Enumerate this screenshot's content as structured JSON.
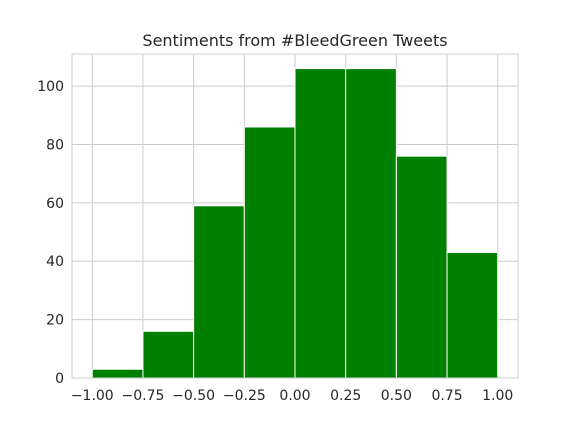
{
  "chart_data": {
    "type": "bar",
    "title": "Sentiments from #BleedGreen Tweets",
    "xlabel": "",
    "ylabel": "",
    "bin_edges": [
      -1.0,
      -0.75,
      -0.5,
      -0.25,
      0.0,
      0.25,
      0.5,
      0.75,
      1.0
    ],
    "values": [
      3,
      16,
      59,
      86,
      106,
      106,
      76,
      43
    ],
    "xlim": [
      -1.1,
      1.1
    ],
    "ylim": [
      0,
      111
    ],
    "xticks": [
      -1.0,
      -0.75,
      -0.5,
      -0.25,
      0.0,
      0.25,
      0.5,
      0.75,
      1.0
    ],
    "xtick_labels": [
      "−1.00",
      "−0.75",
      "−0.50",
      "−0.25",
      "0.00",
      "0.25",
      "0.50",
      "0.75",
      "1.00"
    ],
    "yticks": [
      0,
      20,
      40,
      60,
      80,
      100
    ],
    "ytick_labels": [
      "0",
      "20",
      "40",
      "60",
      "80",
      "100"
    ],
    "bar_color": "#008000",
    "grid": true,
    "grid_color": "#cccccc",
    "background_color": "#ffffff"
  }
}
